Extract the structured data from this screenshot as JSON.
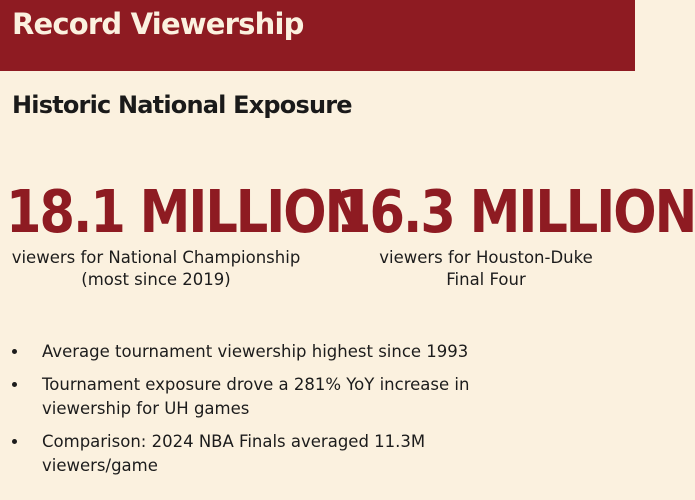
{
  "header": {
    "title": "Record Viewership"
  },
  "section": {
    "title": "Historic National Exposure"
  },
  "stats": [
    {
      "value": "18.1 MILLION",
      "caption_line1": "viewers for National Championship",
      "caption_line2": "(most since 2019)"
    },
    {
      "value": "16.3 MILLION",
      "caption_line1": "viewers for Houston-Duke",
      "caption_line2": "Final Four"
    }
  ],
  "bullets": [
    "Average tournament viewership highest since 1993",
    "Tournament exposure drove a 281% YoY increase in viewership for UH games",
    "Comparison: 2024 NBA Finals averaged 11.3M viewers/game"
  ],
  "colors": {
    "accent": "#8e1b22",
    "background": "#fbf1df",
    "text": "#1c1c1c"
  }
}
